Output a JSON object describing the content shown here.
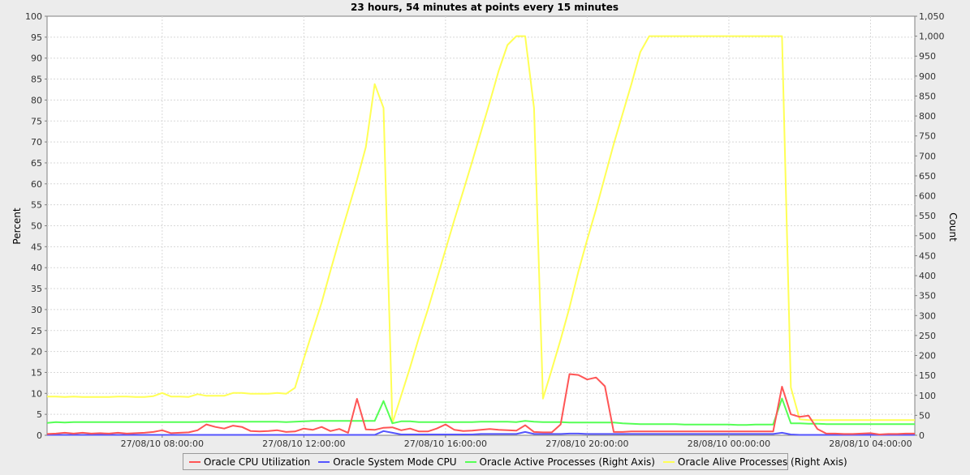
{
  "chart_data": {
    "type": "line",
    "title": "23 hours, 54 minutes at points every 15 minutes",
    "ylabel_left": "Percent",
    "ylabel_right": "Count",
    "ylim_left": [
      0,
      100
    ],
    "ylim_right": [
      0,
      1050
    ],
    "yticks_left": [
      "0",
      "5",
      "10",
      "15",
      "20",
      "25",
      "30",
      "35",
      "40",
      "45",
      "50",
      "55",
      "60",
      "65",
      "70",
      "75",
      "80",
      "85",
      "90",
      "95",
      "100"
    ],
    "yticks_right": [
      "0",
      "50",
      "100",
      "150",
      "200",
      "250",
      "300",
      "350",
      "400",
      "450",
      "500",
      "550",
      "600",
      "650",
      "700",
      "750",
      "800",
      "850",
      "900",
      "950",
      "1,000",
      "1,050"
    ],
    "xticks": [
      "27/08/10 08:00:00",
      "27/08/10 12:00:00",
      "27/08/10 16:00:00",
      "27/08/10 20:00:00",
      "28/08/10 00:00:00",
      "28/08/10 04:00:00"
    ],
    "x_start": "27/08/10 04:45:00",
    "x_step_minutes": 15,
    "grid": true,
    "legend_position": "bottom",
    "series": [
      {
        "name": "Oracle CPU Utilization",
        "axis": "left",
        "color": "#ff5555",
        "values": [
          0.3,
          0.4,
          0.6,
          0.4,
          0.6,
          0.4,
          0.5,
          0.4,
          0.6,
          0.4,
          0.5,
          0.6,
          0.8,
          1.2,
          0.5,
          0.6,
          0.7,
          1.2,
          2.6,
          2.0,
          1.6,
          2.3,
          2.0,
          1.0,
          0.9,
          1.0,
          1.2,
          0.8,
          0.9,
          1.6,
          1.3,
          2.0,
          1.0,
          1.5,
          0.6,
          8.7,
          1.4,
          1.3,
          1.8,
          1.9,
          1.2,
          1.6,
          0.9,
          0.9,
          1.6,
          2.6,
          1.3,
          1.0,
          1.1,
          1.3,
          1.5,
          1.3,
          1.2,
          1.1,
          2.4,
          0.8,
          0.7,
          0.7,
          2.6,
          14.6,
          14.4,
          13.3,
          13.8,
          11.7,
          0.8,
          0.8,
          0.9,
          0.9,
          0.9,
          0.9,
          0.9,
          0.9,
          0.9,
          0.9,
          0.9,
          0.9,
          0.9,
          0.9,
          0.9,
          0.9,
          0.9,
          0.9,
          0.9,
          11.6,
          5.0,
          4.4,
          4.7,
          1.5,
          0.4,
          0.4,
          0.3,
          0.3,
          0.4,
          0.5,
          0.2,
          0.3,
          0.3,
          0.4,
          0.4
        ]
      },
      {
        "name": "Oracle System Mode CPU",
        "axis": "left",
        "color": "#5555ff",
        "values": [
          0.1,
          0.1,
          0.1,
          0.1,
          0.1,
          0.1,
          0.1,
          0.1,
          0.1,
          0.1,
          0.1,
          0.1,
          0.1,
          0.1,
          0.1,
          0.1,
          0.1,
          0.1,
          0.1,
          0.1,
          0.1,
          0.1,
          0.1,
          0.1,
          0.1,
          0.1,
          0.1,
          0.1,
          0.1,
          0.1,
          0.1,
          0.1,
          0.1,
          0.1,
          0.1,
          0.1,
          0.1,
          0.1,
          1.0,
          0.6,
          0.2,
          0.2,
          0.2,
          0.2,
          0.2,
          0.2,
          0.2,
          0.2,
          0.2,
          0.3,
          0.3,
          0.3,
          0.3,
          0.3,
          0.8,
          0.3,
          0.3,
          0.3,
          0.3,
          0.4,
          0.4,
          0.3,
          0.3,
          0.3,
          0.3,
          0.3,
          0.3,
          0.3,
          0.3,
          0.3,
          0.3,
          0.3,
          0.3,
          0.3,
          0.3,
          0.3,
          0.3,
          0.3,
          0.3,
          0.3,
          0.3,
          0.3,
          0.3,
          0.6,
          0.2,
          0.1,
          0.1,
          0.1,
          0.1,
          0.1,
          0.1,
          0.1,
          0.1,
          0.1,
          0.1,
          0.1,
          0.1,
          0.1,
          0.1
        ]
      },
      {
        "name": "Oracle Active Processes (Right Axis)",
        "axis": "right",
        "color": "#55ff55",
        "values": [
          31,
          33,
          32,
          33,
          33,
          33,
          33,
          33,
          33,
          33,
          33,
          33,
          33,
          33,
          33,
          33,
          33,
          33,
          34,
          34,
          34,
          34,
          34,
          34,
          34,
          34,
          34,
          33,
          34,
          35,
          36,
          36,
          36,
          36,
          36,
          36,
          36,
          36,
          86,
          30,
          35,
          35,
          33,
          33,
          33,
          33,
          33,
          33,
          33,
          34,
          34,
          34,
          34,
          33,
          36,
          34,
          33,
          33,
          33,
          32,
          32,
          32,
          32,
          32,
          32,
          30,
          29,
          28,
          28,
          28,
          28,
          28,
          27,
          27,
          27,
          27,
          27,
          27,
          26,
          26,
          27,
          27,
          27,
          92,
          30,
          30,
          29,
          29,
          28,
          28,
          28,
          28,
          28,
          28,
          28,
          28,
          28,
          28,
          28
        ]
      },
      {
        "name": "Oracle Alive Processes (Right Axis)",
        "axis": "right",
        "color": "#ffff55",
        "values": [
          97,
          97,
          96,
          97,
          96,
          96,
          96,
          96,
          97,
          97,
          96,
          96,
          98,
          106,
          97,
          97,
          96,
          103,
          99,
          99,
          99,
          106,
          106,
          104,
          104,
          104,
          106,
          104,
          119,
          192,
          262,
          332,
          412,
          490,
          565,
          640,
          722,
          880,
          820,
          30,
          100,
          170,
          245,
          315,
          390,
          465,
          540,
          612,
          685,
          760,
          835,
          913,
          978,
          1000,
          1000,
          820,
          92,
          165,
          240,
          320,
          410,
          490,
          566,
          648,
          730,
          805,
          880,
          960,
          1000,
          1000,
          1000,
          1000,
          1000,
          1000,
          1000,
          1000,
          1000,
          1000,
          1000,
          1000,
          1000,
          1000,
          1000,
          1000,
          120,
          40,
          38,
          38,
          38,
          38,
          38,
          38,
          38,
          38,
          38,
          38,
          38,
          38,
          38
        ]
      }
    ]
  }
}
